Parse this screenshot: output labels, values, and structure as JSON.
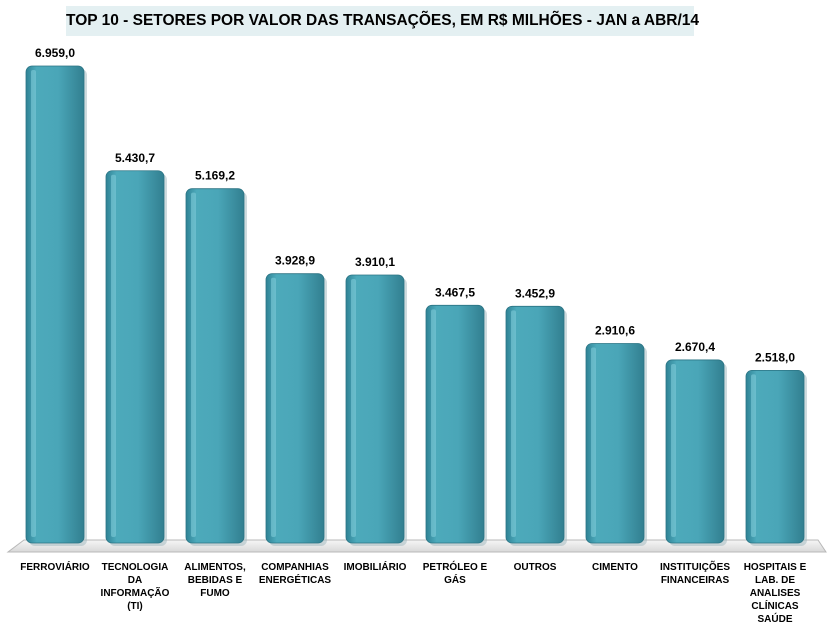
{
  "chart_data": {
    "type": "bar",
    "title": "TOP 10 - SETORES POR VALOR DAS TRANSAÇÕES, EM R$ MILHÕES  - JAN a  ABR/14",
    "categories": [
      "FERROVIÁRIO",
      "TECNOLOGIA DA INFORMAÇÃO (TI)",
      "ALIMENTOS, BEBIDAS E FUMO",
      "COMPANHIAS ENERGÉTICAS",
      "IMOBILIÁRIO",
      "PETRÓLEO E GÁS",
      "OUTROS",
      "CIMENTO",
      "INSTITUIÇÕES FINANCEIRAS",
      "HOSPITAIS E LAB. DE ANALISES CLÍNICAS SAÚDE"
    ],
    "values": [
      6959.0,
      5430.7,
      5169.2,
      3928.9,
      3910.1,
      3467.5,
      3452.9,
      2910.6,
      2670.4,
      2518.0
    ],
    "value_labels": [
      "6.959,0",
      "5.430,7",
      "5.169,2",
      "3.928,9",
      "3.910,1",
      "3.467,5",
      "3.452,9",
      "2.910,6",
      "2.670,4",
      "2.518,0"
    ],
    "xlabel": "",
    "ylabel": "",
    "ylim": [
      0,
      6959
    ],
    "grid": false,
    "legend": "none",
    "colors": {
      "bar": "#4aa6b8",
      "bar_dark": "#2e7f90",
      "bar_light": "#7cc8d6",
      "floor": "#e8e8e8"
    }
  }
}
